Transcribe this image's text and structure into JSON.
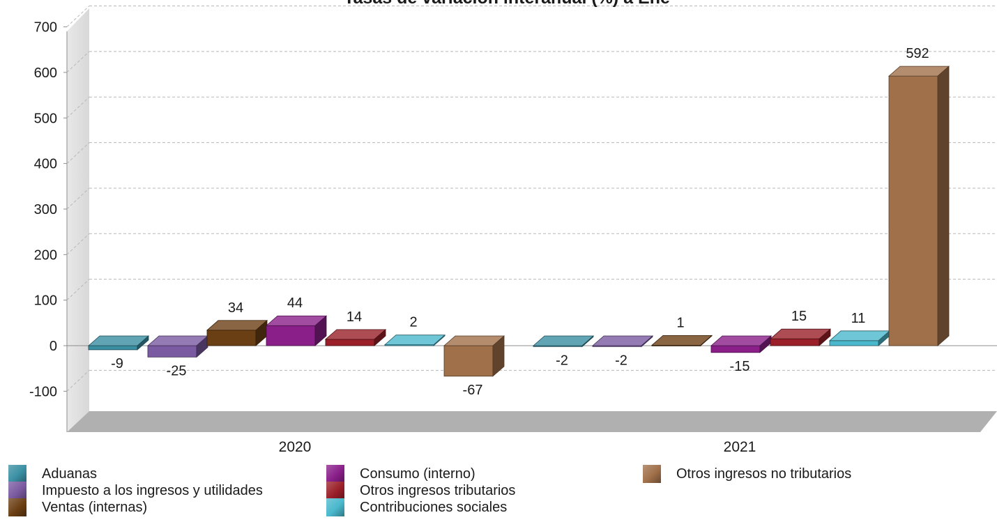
{
  "chart_data": {
    "type": "bar",
    "title": "Tasas de variación interanual (%) a Ene",
    "categories": [
      "2020",
      "2021"
    ],
    "ylim": [
      -100,
      700
    ],
    "yticks": [
      -100,
      0,
      100,
      200,
      300,
      400,
      500,
      600,
      700
    ],
    "grid": true,
    "legend_position": "bottom",
    "series": [
      {
        "name": "Aduanas",
        "values": [
          -9,
          -2
        ],
        "color": "#3a8fa3"
      },
      {
        "name": "Impuesto a los ingresos y utilidades",
        "values": [
          -25,
          -2
        ],
        "color": "#7a5aa0"
      },
      {
        "name": "Ventas (internas)",
        "values": [
          34,
          1
        ],
        "color": "#6b3f14"
      },
      {
        "name": "Consumo (interno)",
        "values": [
          44,
          -15
        ],
        "color": "#8a1f8a"
      },
      {
        "name": "Otros ingresos tributarios",
        "values": [
          14,
          15
        ],
        "color": "#9a1f28"
      },
      {
        "name": "Contribuciones sociales",
        "values": [
          2,
          11
        ],
        "color": "#4ab8cc"
      },
      {
        "name": "Otros ingresos no tributarios",
        "values": [
          -67,
          592
        ],
        "color": "#a0704a"
      }
    ]
  }
}
